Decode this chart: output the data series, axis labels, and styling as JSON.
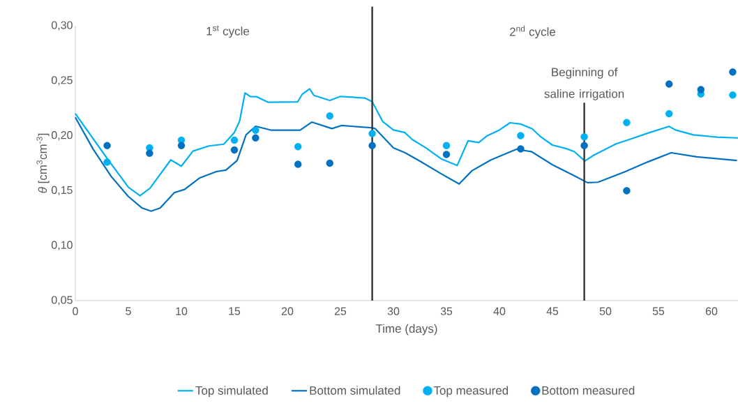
{
  "chart_data": {
    "type": "line",
    "xlabel": "Time (days)",
    "ylabel": "*θ* [cm$^{3}$cm$^{-3}$]",
    "xlim": [
      0,
      62.5
    ],
    "ylim": [
      0.05,
      0.3
    ],
    "xticks": [
      0,
      5,
      10,
      15,
      20,
      25,
      30,
      35,
      40,
      45,
      50,
      55,
      60
    ],
    "yticks": [
      {
        "value": 0.05,
        "label": "0,05"
      },
      {
        "value": 0.1,
        "label": "0,10"
      },
      {
        "value": 0.15,
        "label": "0,15"
      },
      {
        "value": 0.2,
        "label": "0,20"
      },
      {
        "value": 0.25,
        "label": "0,25"
      },
      {
        "value": 0.3,
        "label": "0,30"
      }
    ],
    "legend": "bottom",
    "grid": false,
    "annotations": [
      "1$^{st}$ cycle",
      "2$^{nd}$ cycle"
    ],
    "ref_lines": [
      {
        "axis": "x",
        "value": 28,
        "color": "#333333"
      },
      {
        "axis": "x",
        "value": 48,
        "label": "Beginning of saline irrigation",
        "color": "#333333"
      }
    ],
    "series": [
      {
        "name": "Top simulated",
        "color": "#00b0f0",
        "x": [
          0,
          2.98,
          5.0,
          6.1,
          7.04,
          9.0,
          10.0,
          11.1,
          12.6,
          14.0,
          15.0,
          15.5,
          16.0,
          16.5,
          17.1,
          18.2,
          20.96,
          21.4,
          22.1,
          22.5,
          24.0,
          25.0,
          27.3,
          28.0,
          29.0,
          30.0,
          31.05,
          31.8,
          33.05,
          34.5,
          36.02,
          37.04,
          38.05,
          38.8,
          40.0,
          41.0,
          42.0,
          43.1,
          43.8,
          45.0,
          46.25,
          47.05,
          48.06,
          48.9,
          51.0,
          52.2,
          54.2,
          56.0,
          56.6,
          58.3,
          60.5,
          62.5
        ],
        "values": [
          0.2202,
          0.1796,
          0.1532,
          0.1454,
          0.1522,
          0.178,
          0.1723,
          0.186,
          0.1907,
          0.1923,
          0.2029,
          0.2135,
          0.2389,
          0.2357,
          0.2355,
          0.2304,
          0.2307,
          0.2378,
          0.2427,
          0.2367,
          0.2321,
          0.2357,
          0.2343,
          0.231,
          0.2128,
          0.2052,
          0.203,
          0.1964,
          0.189,
          0.179,
          0.173,
          0.1954,
          0.1938,
          0.1997,
          0.2052,
          0.2118,
          0.2106,
          0.2063,
          0.1997,
          0.1915,
          0.1884,
          0.1856,
          0.177,
          0.1823,
          0.1926,
          0.1964,
          0.203,
          0.2085,
          0.2052,
          0.2008,
          0.1987,
          0.198
        ]
      },
      {
        "name": "Bottom simulated",
        "color": "#0070c0",
        "x": [
          0,
          1.66,
          3.4,
          5.0,
          6.3,
          7.15,
          8.0,
          9.35,
          10.3,
          11.75,
          13.3,
          14.2,
          15.26,
          16.1,
          17.0,
          18.5,
          21.2,
          22.3,
          24.2,
          25.1,
          28.0,
          28.3,
          30.0,
          31.1,
          32.5,
          34.5,
          36.2,
          37.4,
          39.2,
          41.6,
          43.0,
          45.0,
          46.8,
          48.3,
          49.3,
          51.8,
          54.0,
          56.2,
          58.6,
          62.4
        ],
        "values": [
          0.2167,
          0.1881,
          0.1627,
          0.1447,
          0.1342,
          0.1314,
          0.1342,
          0.1483,
          0.1511,
          0.1617,
          0.1674,
          0.1687,
          0.1775,
          0.2008,
          0.2086,
          0.205,
          0.205,
          0.2124,
          0.2065,
          0.2093,
          0.2072,
          0.2063,
          0.189,
          0.1845,
          0.1769,
          0.1654,
          0.1561,
          0.1681,
          0.178,
          0.1877,
          0.1856,
          0.1736,
          0.1649,
          0.1573,
          0.1577,
          0.1671,
          0.1762,
          0.1845,
          0.1808,
          0.1775
        ]
      },
      {
        "name": "Top measured",
        "type": "scatter",
        "marker": "circle",
        "color": "#00b0f0",
        "x": [
          3,
          7,
          10,
          15,
          17,
          21,
          24,
          28,
          35,
          42,
          48,
          52,
          56,
          59,
          62
        ],
        "values": [
          0.176,
          0.189,
          0.196,
          0.196,
          0.205,
          0.19,
          0.218,
          0.202,
          0.191,
          0.2,
          0.199,
          0.212,
          0.22,
          0.238,
          0.237
        ]
      },
      {
        "name": "Bottom measured",
        "type": "scatter",
        "marker": "circle",
        "color": "#0070c0",
        "x": [
          3,
          7,
          10,
          15,
          17,
          21,
          24,
          28,
          35,
          42,
          48,
          52,
          56,
          59,
          62
        ],
        "values": [
          0.191,
          0.184,
          0.191,
          0.187,
          0.198,
          0.174,
          0.175,
          0.191,
          0.183,
          0.188,
          0.191,
          0.15,
          0.247,
          0.242,
          0.258
        ]
      }
    ]
  }
}
